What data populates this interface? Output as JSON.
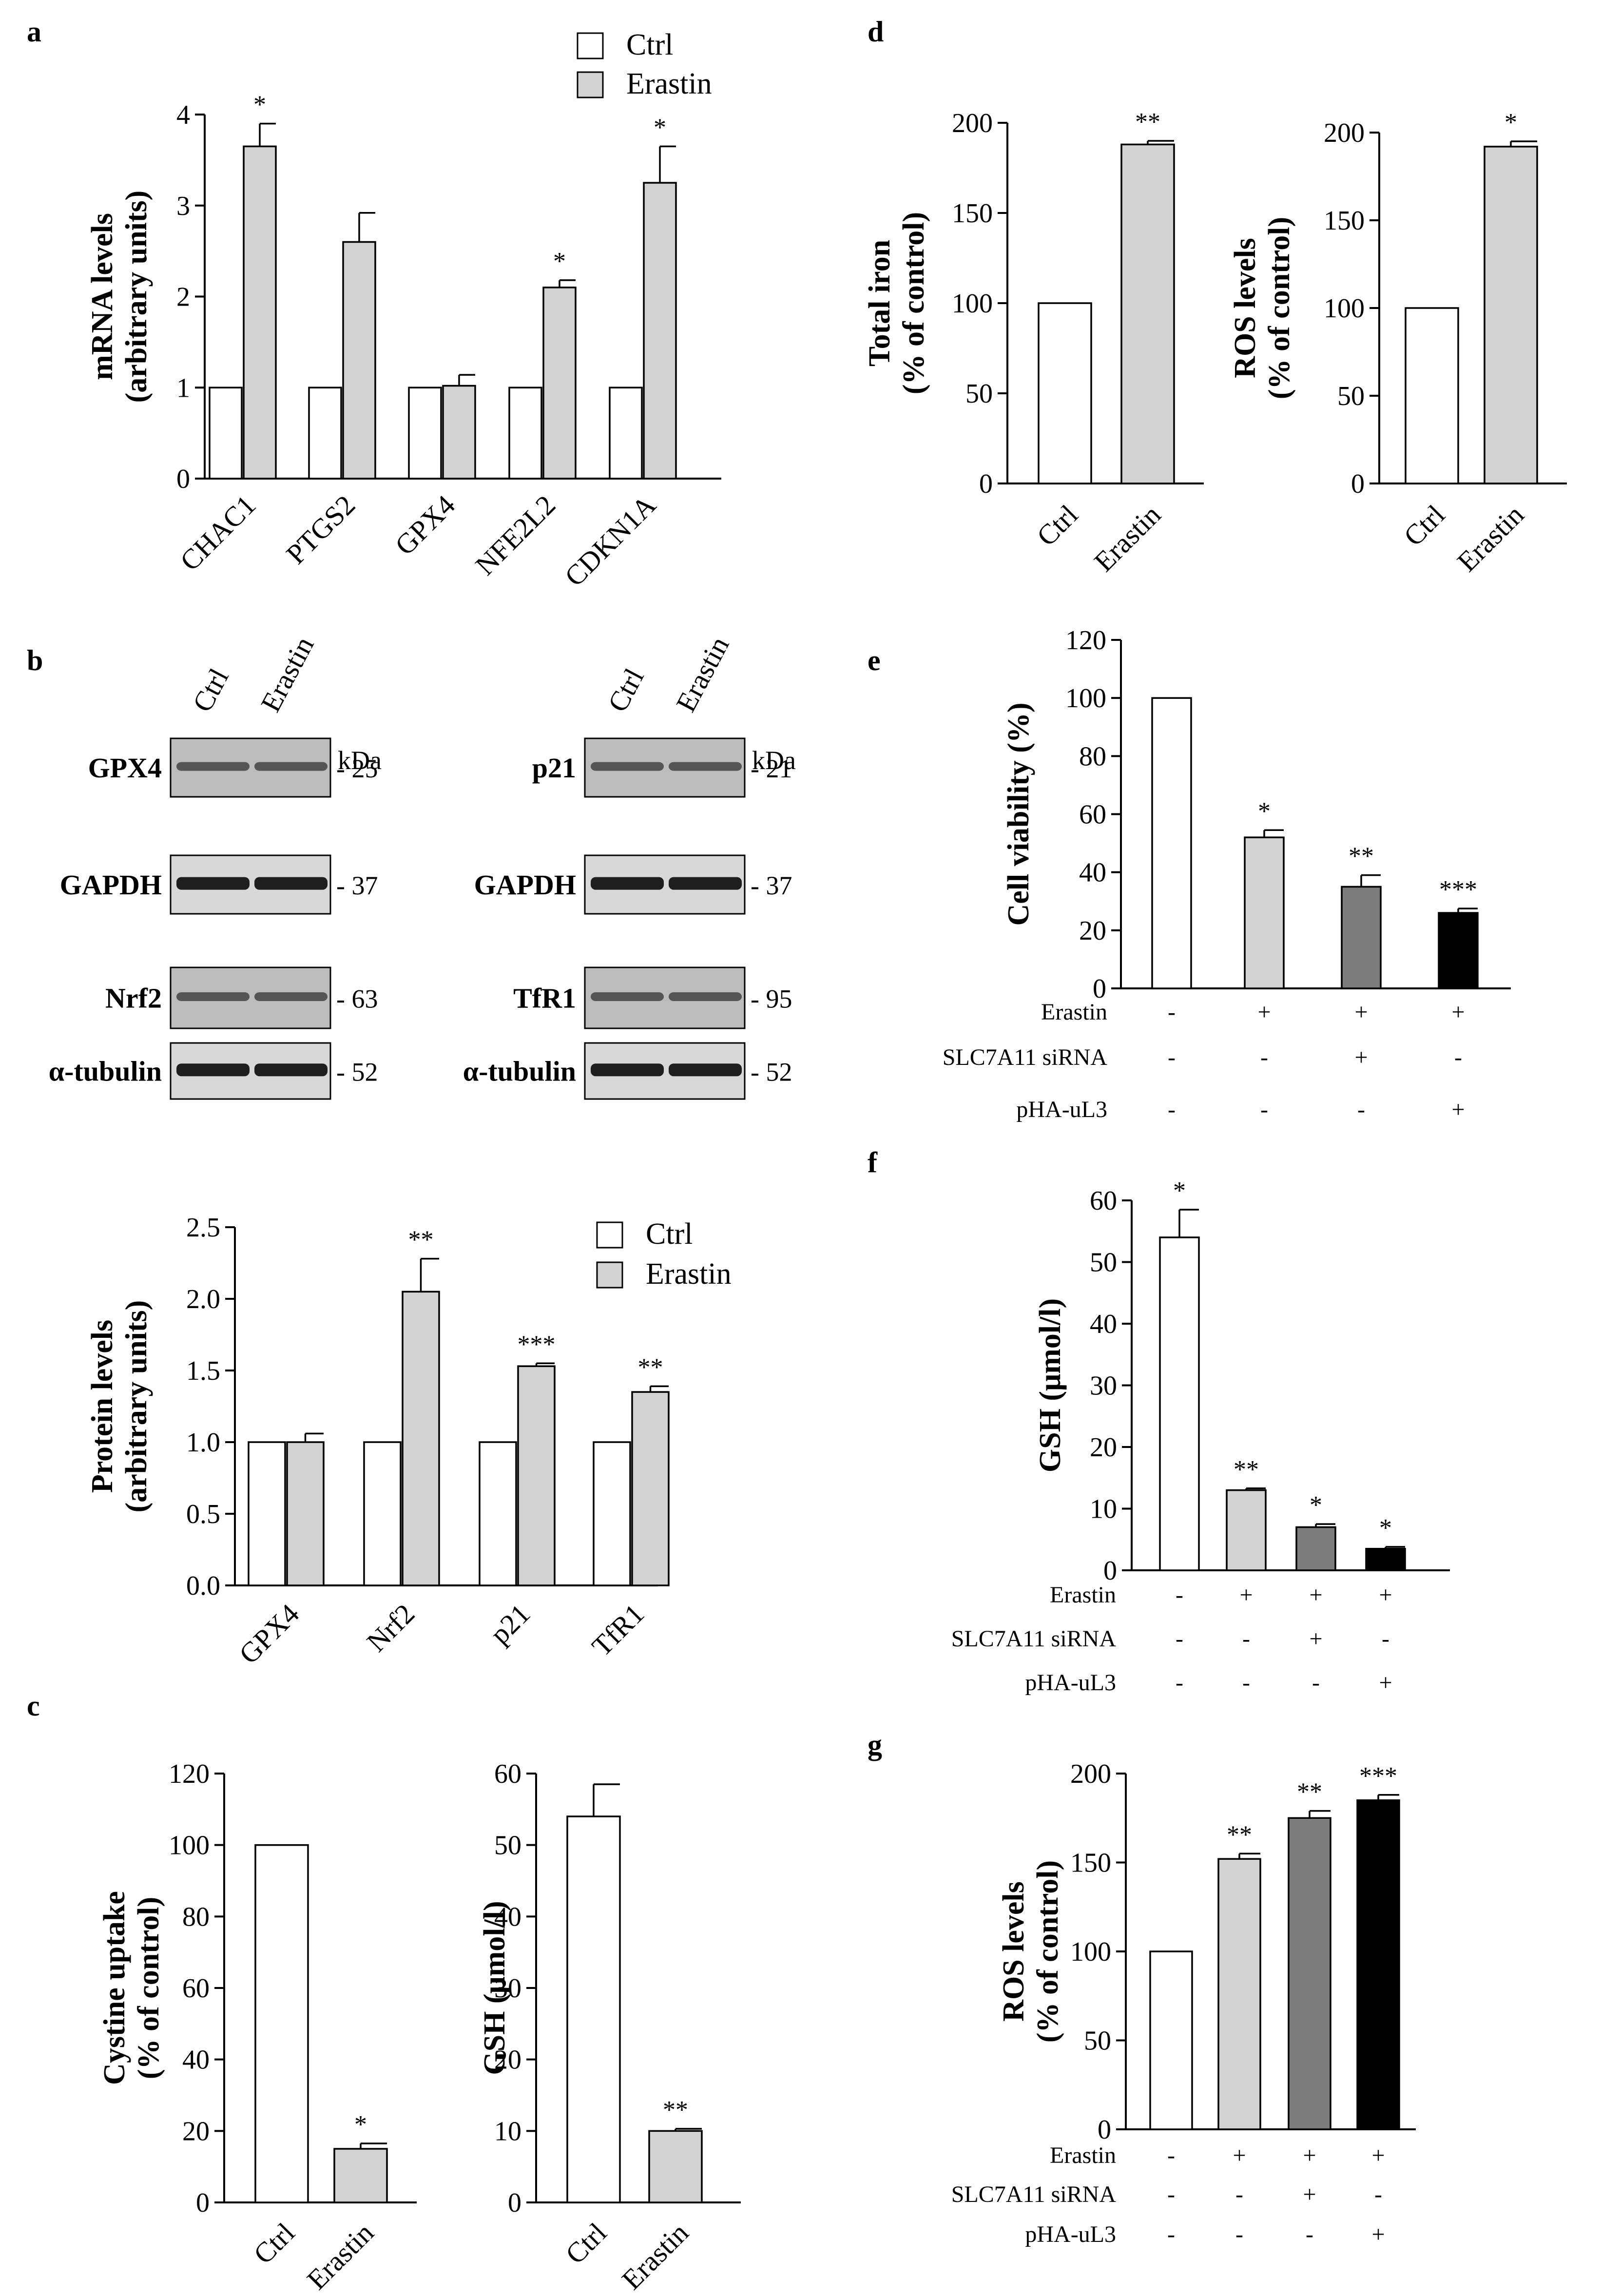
{
  "colors": {
    "ctrl": "#ffffff",
    "erastin": "#d2d2d2",
    "dark_gray": "#7c7c7c",
    "black": "#000000",
    "band": "#1e1e1e",
    "blot_bg": "#bcbcbc"
  },
  "chart_data": [
    {
      "id": "a",
      "type": "bar",
      "panel_label": "a",
      "ylabel": [
        "mRNA levels",
        "(arbitrary units)"
      ],
      "ylim": [
        0,
        4
      ],
      "yticks": [
        0,
        1,
        2,
        3,
        4
      ],
      "tick_decimals": 0,
      "legend": {
        "position": "top-right",
        "entries": [
          "Ctrl",
          "Erastin"
        ]
      },
      "categories": [
        "CHAC1",
        "PTGS2",
        "GPX4",
        "NFE2L2",
        "CDKN1A"
      ],
      "series": [
        {
          "name": "Ctrl",
          "fill": "ctrl",
          "values": [
            1,
            1,
            1,
            1,
            1
          ],
          "errors": [
            0,
            0,
            0,
            0,
            0
          ],
          "stars": [
            "",
            "",
            "",
            "",
            ""
          ]
        },
        {
          "name": "Erastin",
          "fill": "erastin",
          "values": [
            3.65,
            2.6,
            1.02,
            2.1,
            3.25
          ],
          "errors": [
            0.25,
            0.32,
            0.12,
            0.08,
            0.4
          ],
          "stars": [
            "*",
            "",
            "",
            "*",
            "*"
          ]
        }
      ]
    },
    {
      "id": "b2",
      "type": "bar",
      "panel_label": "",
      "ylabel": [
        "Protein levels",
        "(arbitrary units)"
      ],
      "ylim": [
        0,
        2.5
      ],
      "yticks": [
        0,
        0.5,
        1,
        1.5,
        2,
        2.5
      ],
      "tick_decimals": 1,
      "legend": {
        "position": "top-right",
        "entries": [
          "Ctrl",
          "Erastin"
        ]
      },
      "categories": [
        "GPX4",
        "Nrf2",
        "p21",
        "TfR1"
      ],
      "series": [
        {
          "name": "Ctrl",
          "fill": "ctrl",
          "values": [
            1,
            1,
            1,
            1
          ],
          "errors": [
            0,
            0,
            0,
            0
          ],
          "stars": [
            "",
            "",
            "",
            ""
          ]
        },
        {
          "name": "Erastin",
          "fill": "erastin",
          "values": [
            1.0,
            2.05,
            1.53,
            1.35
          ],
          "errors": [
            0.06,
            0.23,
            0.02,
            0.04
          ],
          "stars": [
            "",
            "**",
            "***",
            "**"
          ]
        }
      ]
    },
    {
      "id": "c1",
      "type": "bar",
      "panel_label": "c",
      "ylabel": [
        "Cystine uptake",
        "(% of control)"
      ],
      "ylim": [
        0,
        120
      ],
      "yticks": [
        0,
        20,
        40,
        60,
        80,
        100,
        120
      ],
      "tick_decimals": 0,
      "categories": [
        "Ctrl",
        "Erastin"
      ],
      "values": [
        100,
        15
      ],
      "errors": [
        0,
        1.5
      ],
      "fills": [
        "ctrl",
        "erastin"
      ],
      "stars": [
        "",
        "*"
      ]
    },
    {
      "id": "c2",
      "type": "bar",
      "panel_label": "",
      "ylabel": [
        "GSH (μmol/l)"
      ],
      "ylim": [
        0,
        60
      ],
      "yticks": [
        0,
        10,
        20,
        30,
        40,
        50,
        60
      ],
      "tick_decimals": 0,
      "categories": [
        "Ctrl",
        "Erastin"
      ],
      "values": [
        54,
        10
      ],
      "errors": [
        4.5,
        0.3
      ],
      "fills": [
        "ctrl",
        "erastin"
      ],
      "stars": [
        "",
        "**"
      ]
    },
    {
      "id": "d1",
      "type": "bar",
      "panel_label": "d",
      "ylabel": [
        "Total iron",
        "(% of control)"
      ],
      "ylim": [
        0,
        200
      ],
      "yticks": [
        0,
        50,
        100,
        150,
        200
      ],
      "tick_decimals": 0,
      "categories": [
        "Ctrl",
        "Erastin"
      ],
      "values": [
        100,
        188
      ],
      "errors": [
        0,
        2
      ],
      "fills": [
        "ctrl",
        "erastin"
      ],
      "stars": [
        "",
        "**"
      ]
    },
    {
      "id": "d2",
      "type": "bar",
      "panel_label": "",
      "ylabel": [
        "ROS levels",
        "(% of control)"
      ],
      "ylim": [
        0,
        200
      ],
      "yticks": [
        0,
        50,
        100,
        150,
        200
      ],
      "tick_decimals": 0,
      "categories": [
        "Ctrl",
        "Erastin"
      ],
      "values": [
        100,
        192
      ],
      "errors": [
        0,
        3
      ],
      "fills": [
        "ctrl",
        "erastin"
      ],
      "stars": [
        "",
        "*"
      ]
    },
    {
      "id": "e",
      "type": "bar",
      "panel_label": "e",
      "ylabel": [
        "Cell viability  (%)"
      ],
      "ylim": [
        0,
        120
      ],
      "yticks": [
        0,
        20,
        40,
        60,
        80,
        100,
        120
      ],
      "tick_decimals": 0,
      "values": [
        100,
        52,
        35,
        26
      ],
      "errors": [
        0,
        2.5,
        4,
        1.5
      ],
      "fills": [
        "ctrl",
        "erastin",
        "dark_gray",
        "black"
      ],
      "stars": [
        "",
        "*",
        "**",
        "***"
      ],
      "conditions": [
        {
          "label": "Erastin",
          "signs": [
            "-",
            "+",
            "+",
            "+"
          ]
        },
        {
          "label": "SLC7A11 siRNA",
          "signs": [
            "-",
            "-",
            "+",
            "-"
          ]
        },
        {
          "label": "pHA-uL3",
          "signs": [
            "-",
            "-",
            "-",
            "+"
          ]
        }
      ]
    },
    {
      "id": "f",
      "type": "bar",
      "panel_label": "f",
      "ylabel": [
        "GSH (μmol/l)"
      ],
      "ylim": [
        0,
        60
      ],
      "yticks": [
        0,
        10,
        20,
        30,
        40,
        50,
        60
      ],
      "tick_decimals": 0,
      "values": [
        54,
        13,
        7,
        3.5
      ],
      "errors": [
        4.5,
        0.3,
        0.5,
        0.3
      ],
      "fills": [
        "ctrl",
        "erastin",
        "dark_gray",
        "black"
      ],
      "stars": [
        "*",
        "**",
        "*",
        "*"
      ],
      "conditions": [
        {
          "label": "Erastin",
          "signs": [
            "-",
            "+",
            "+",
            "+"
          ]
        },
        {
          "label": "SLC7A11 siRNA",
          "signs": [
            "-",
            "-",
            "+",
            "-"
          ]
        },
        {
          "label": "pHA-uL3",
          "signs": [
            "-",
            "-",
            "-",
            "+"
          ]
        }
      ]
    },
    {
      "id": "g",
      "type": "bar",
      "panel_label": "g",
      "ylabel": [
        "ROS levels",
        "(% of control)"
      ],
      "ylim": [
        0,
        200
      ],
      "yticks": [
        0,
        50,
        100,
        150,
        200
      ],
      "tick_decimals": 0,
      "values": [
        100,
        152,
        175,
        185
      ],
      "errors": [
        0,
        3,
        4,
        3
      ],
      "fills": [
        "ctrl",
        "erastin",
        "dark_gray",
        "black"
      ],
      "stars": [
        "",
        "**",
        "**",
        "***"
      ],
      "conditions": [
        {
          "label": "Erastin",
          "signs": [
            "-",
            "+",
            "+",
            "+"
          ]
        },
        {
          "label": "SLC7A11 siRNA",
          "signs": [
            "-",
            "-",
            "+",
            "-"
          ]
        },
        {
          "label": "pHA-uL3",
          "signs": [
            "-",
            "-",
            "-",
            "+"
          ]
        }
      ]
    }
  ],
  "blots": {
    "panel_label": "b",
    "column_labels": [
      "Ctrl",
      "Erastin"
    ],
    "kda_label": "kDa",
    "groups": [
      {
        "label": "GPX4",
        "kda": "- 25"
      },
      {
        "label": "GAPDH",
        "kda": "- 37"
      },
      {
        "label": "Nrf2",
        "kda": "- 63"
      },
      {
        "label": "α-tubulin",
        "kda": "- 52"
      },
      {
        "label": "p21",
        "kda": "- 21"
      },
      {
        "label": "GAPDH",
        "kda": "- 37"
      },
      {
        "label": "TfR1",
        "kda": "- 95"
      },
      {
        "label": "α-tubulin",
        "kda": "- 52"
      }
    ]
  }
}
